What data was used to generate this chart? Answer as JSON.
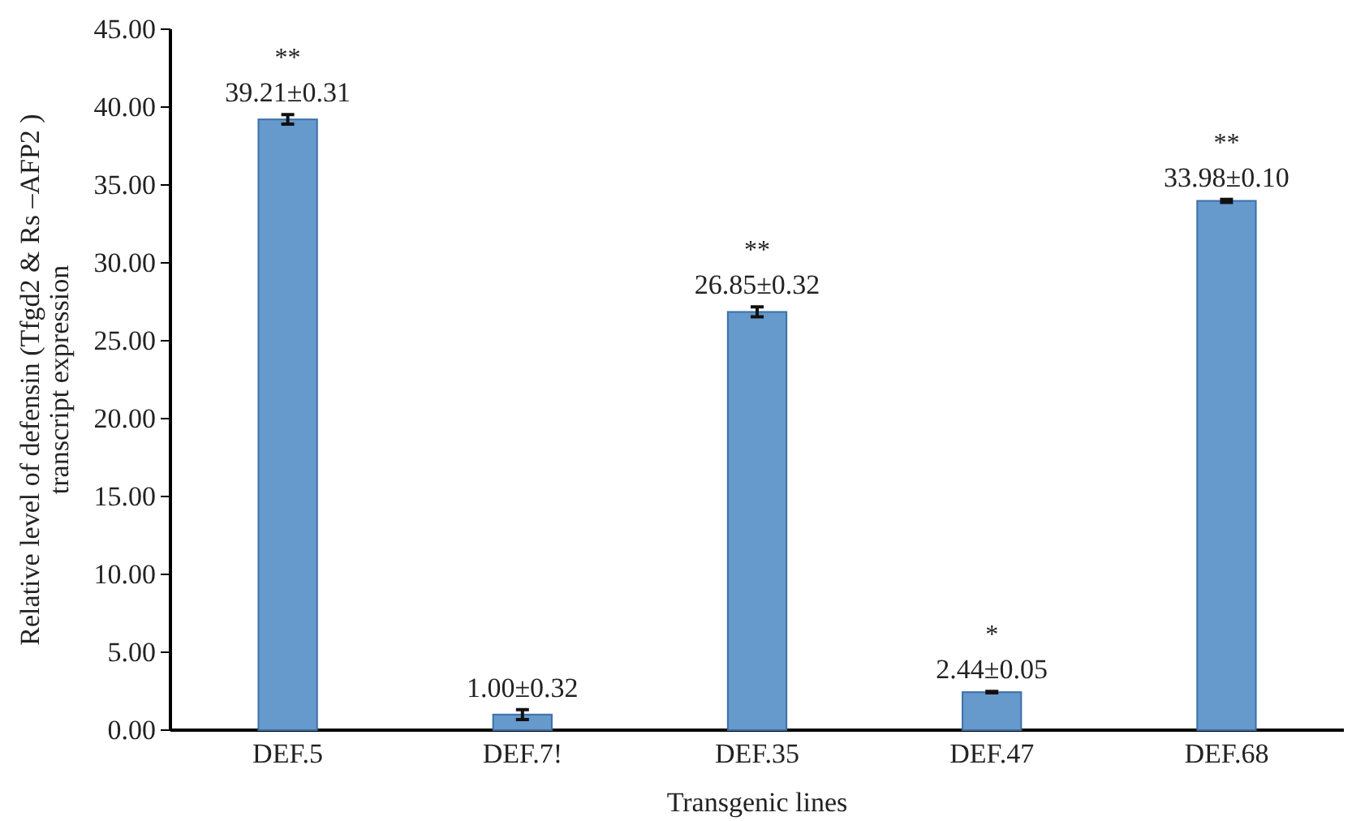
{
  "chart_data": {
    "type": "bar",
    "xlabel": "Transgenic lines",
    "ylabel": "Relative level of defensin (Tfgd2 & Rs –AFP2 )\ntranscript expression",
    "categories": [
      "DEF.5",
      "DEF.7!",
      "DEF.35",
      "DEF.47",
      "DEF.68"
    ],
    "values": [
      39.21,
      1.0,
      26.85,
      2.44,
      33.98
    ],
    "errors": [
      0.31,
      0.32,
      0.32,
      0.05,
      0.1
    ],
    "value_labels": [
      "39.21±0.31",
      "1.00±0.32",
      "26.85±0.32",
      "2.44±0.05",
      "33.98±0.10"
    ],
    "color": "#6699cc",
    "ylim": [
      0,
      45
    ],
    "yticks": [
      {
        "value": 0,
        "label": "0.00"
      },
      {
        "value": 5,
        "label": "5.00"
      },
      {
        "value": 10,
        "label": "10.00"
      },
      {
        "value": 15,
        "label": "15.00"
      },
      {
        "value": 20,
        "label": "20.00"
      },
      {
        "value": 25,
        "label": "25.00"
      },
      {
        "value": 30,
        "label": "30.00"
      },
      {
        "value": 35,
        "label": "35.00"
      },
      {
        "value": 40,
        "label": "40.00"
      },
      {
        "value": 45,
        "label": "45.00"
      }
    ],
    "annotations": [
      {
        "text": "**",
        "x": "DEF.5",
        "y": 39.21
      },
      {
        "text": "**",
        "x": "DEF.35",
        "y": 26.85
      },
      {
        "text": "*",
        "x": "DEF.47",
        "y": 2.44
      },
      {
        "text": "**",
        "x": "DEF.68",
        "y": 33.98
      }
    ]
  }
}
